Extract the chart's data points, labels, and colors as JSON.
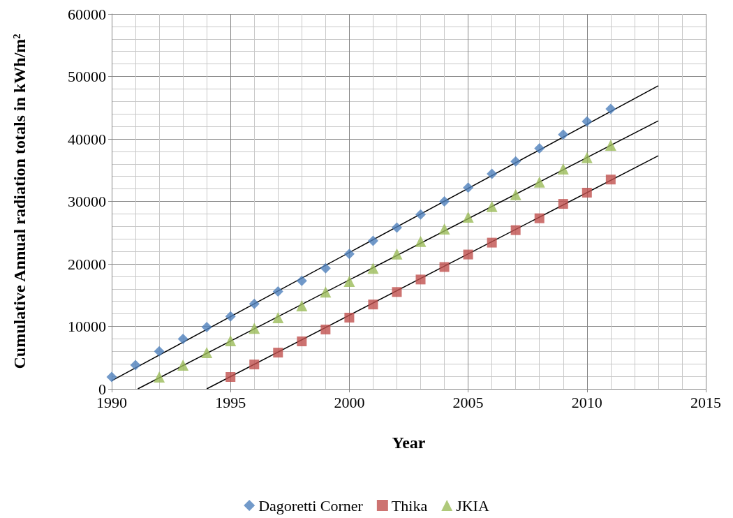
{
  "chart_data": {
    "type": "scatter",
    "xlabel": "Year",
    "ylabel": "Cumulative Annual radiation totals in kWh/m²",
    "xlim": [
      1990,
      2015
    ],
    "xticks": [
      1990,
      1995,
      2000,
      2005,
      2010,
      2015
    ],
    "ylim": [
      0,
      60000
    ],
    "yticks": [
      0,
      10000,
      20000,
      30000,
      40000,
      50000,
      60000
    ],
    "grid": true,
    "legend": "bottom",
    "series": [
      {
        "name": "Dagoretti Corner",
        "color": "#4f81bd",
        "marker": "diamond",
        "x": [
          1990,
          1991,
          1992,
          1993,
          1994,
          1995,
          1996,
          1997,
          1998,
          1999,
          2000,
          2001,
          2002,
          2003,
          2004,
          2005,
          2006,
          2007,
          2008,
          2009,
          2010,
          2011
        ],
        "values": [
          1900,
          3800,
          6000,
          8000,
          9900,
          11600,
          13600,
          15600,
          17300,
          19300,
          21600,
          23700,
          25800,
          27900,
          30000,
          32200,
          34400,
          36400,
          38500,
          40700,
          42800,
          44800
        ]
      },
      {
        "name": "Thika",
        "color": "#c0504d",
        "marker": "square",
        "x": [
          1995,
          1996,
          1997,
          1998,
          1999,
          2000,
          2001,
          2002,
          2003,
          2004,
          2005,
          2006,
          2007,
          2008,
          2009,
          2010,
          2011
        ],
        "values": [
          1900,
          3900,
          5800,
          7600,
          9500,
          11400,
          13500,
          15500,
          17500,
          19500,
          21500,
          23400,
          25400,
          27300,
          29600,
          31400,
          33500
        ]
      },
      {
        "name": "JKIA",
        "color": "#9bbb59",
        "marker": "triangle",
        "x": [
          1992,
          1993,
          1994,
          1995,
          1996,
          1997,
          1998,
          1999,
          2000,
          2001,
          2002,
          2003,
          2004,
          2005,
          2006,
          2007,
          2008,
          2009,
          2010,
          2011
        ],
        "values": [
          1900,
          3800,
          5800,
          7700,
          9700,
          11400,
          13300,
          15500,
          17200,
          19300,
          21600,
          23600,
          25600,
          27500,
          29200,
          31100,
          33100,
          35200,
          37000,
          39000
        ]
      },
      {
        "type": "line",
        "color": "#000000",
        "marker": "none",
        "x": [
          1990,
          2013
        ],
        "values": [
          1300,
          48500
        ]
      },
      {
        "type": "line",
        "color": "#000000",
        "marker": "none",
        "x": [
          1991.1,
          2013
        ],
        "values": [
          0,
          42900
        ]
      },
      {
        "type": "line",
        "color": "#000000",
        "marker": "none",
        "x": [
          1994,
          2013
        ],
        "values": [
          0,
          37300
        ]
      }
    ]
  }
}
